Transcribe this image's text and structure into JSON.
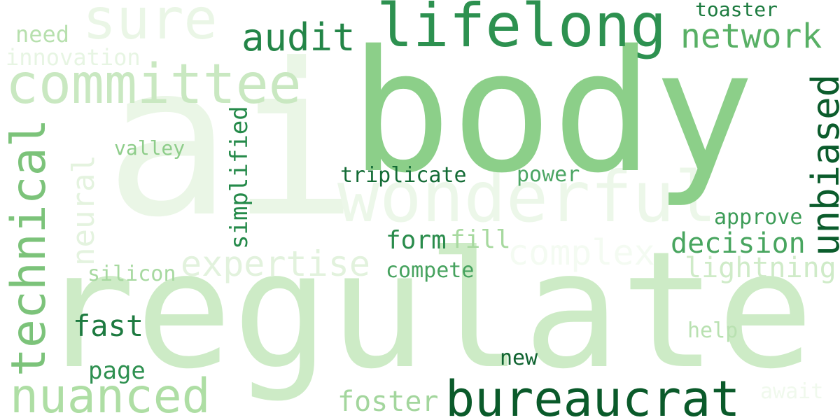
{
  "words": [
    {
      "text": "ai",
      "color": "#eaf6e6"
    },
    {
      "text": "regulate",
      "color": "#cdebc6"
    },
    {
      "text": "body",
      "color": "#8ccf89"
    },
    {
      "text": "wonderful",
      "color": "#ecf7e9"
    },
    {
      "text": "sure",
      "color": "#eaf6e6"
    },
    {
      "text": "lifelong",
      "color": "#2d9150"
    },
    {
      "text": "bureaucrat",
      "color": "#0a5a2a"
    },
    {
      "text": "committee",
      "color": "#c9e8c1"
    },
    {
      "text": "technical",
      "color": "#7cc37a"
    },
    {
      "text": "nuanced",
      "color": "#aedea4"
    },
    {
      "text": "unbiased",
      "color": "#0b5c2c"
    },
    {
      "text": "audit",
      "color": "#238547"
    },
    {
      "text": "network",
      "color": "#58b065"
    },
    {
      "text": "neural",
      "color": "#e4f3df"
    },
    {
      "text": "expertise",
      "color": "#e2f2dd"
    },
    {
      "text": "complex",
      "color": "#f4fbf2"
    },
    {
      "text": "simplified",
      "color": "#258a4a"
    },
    {
      "text": "decision",
      "color": "#48a55f"
    },
    {
      "text": "lightning",
      "color": "#cfebc8"
    },
    {
      "text": "fast",
      "color": "#1d7a40"
    },
    {
      "text": "foster",
      "color": "#a3d69d"
    },
    {
      "text": "page",
      "color": "#2e9050"
    },
    {
      "text": "innovation",
      "color": "#e7f5e3"
    },
    {
      "text": "need",
      "color": "#b7e0ae"
    },
    {
      "text": "toaster",
      "color": "#1b7a3e"
    },
    {
      "text": "valley",
      "color": "#8ecd8a"
    },
    {
      "text": "triplicate",
      "color": "#136b35"
    },
    {
      "text": "power",
      "color": "#4ba563"
    },
    {
      "text": "approve",
      "color": "#3c9c57"
    },
    {
      "text": "form",
      "color": "#2a8c4c"
    },
    {
      "text": "fill",
      "color": "#a7d99f"
    },
    {
      "text": "silicon",
      "color": "#a7d9a0"
    },
    {
      "text": "compete",
      "color": "#46a25e"
    },
    {
      "text": "help",
      "color": "#b9e1b1"
    },
    {
      "text": "new",
      "color": "#0f6330"
    },
    {
      "text": "await",
      "color": "#f0f9ed"
    }
  ]
}
